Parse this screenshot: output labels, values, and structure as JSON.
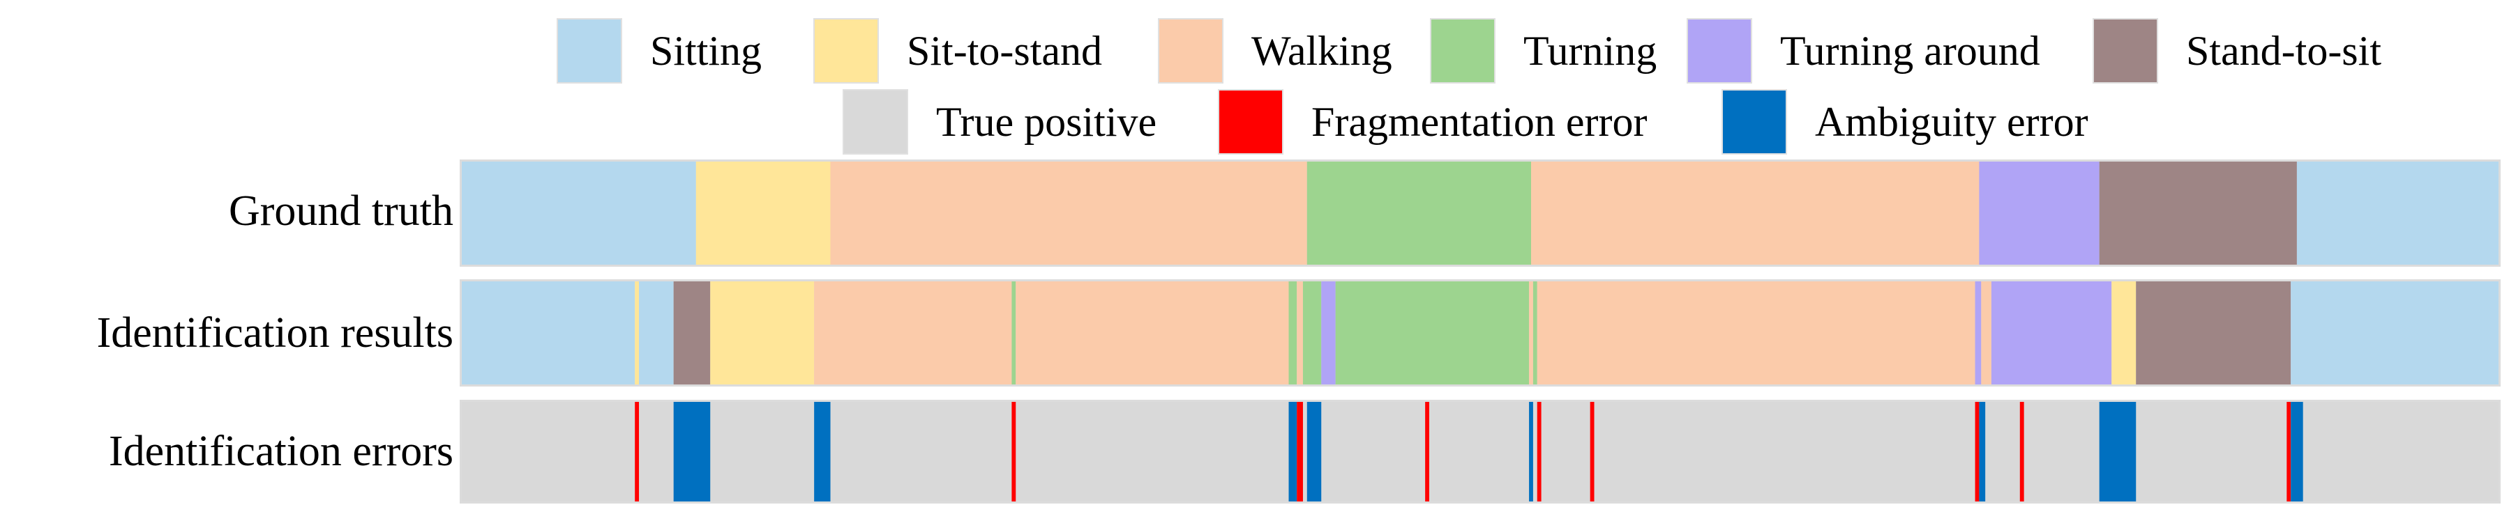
{
  "chart_data": {
    "type": "bar",
    "orientation": "horizontal-timeline",
    "title": "",
    "xlabel": "",
    "ylabel": "",
    "xlim": [
      0,
      100
    ],
    "legend": {
      "placement": "top",
      "activities": [
        {
          "name": "Sitting",
          "color": "#b4d8ee"
        },
        {
          "name": "Sit-to-stand",
          "color": "#ffe699"
        },
        {
          "name": "Walking",
          "color": "#fbcbaa"
        },
        {
          "name": "Turning",
          "color": "#9dd48f"
        },
        {
          "name": "Turning around",
          "color": "#b0a4f6"
        },
        {
          "name": "Stand-to-sit",
          "color": "#9e8585"
        }
      ],
      "errors": [
        {
          "name": "True positive",
          "color": "#d9d9d9"
        },
        {
          "name": "Fragmentation error",
          "color": "#ff0000"
        },
        {
          "name": "Ambiguity error",
          "color": "#0070c0"
        }
      ]
    },
    "rows": [
      {
        "name": "Ground truth",
        "segments": [
          {
            "label": "Sitting",
            "start": 0.0,
            "end": 11.5
          },
          {
            "label": "Sit-to-stand",
            "start": 11.5,
            "end": 18.1
          },
          {
            "label": "Walking",
            "start": 18.1,
            "end": 41.5
          },
          {
            "label": "Turning",
            "start": 41.5,
            "end": 52.5
          },
          {
            "label": "Walking",
            "start": 52.5,
            "end": 74.5
          },
          {
            "label": "Turning around",
            "start": 74.5,
            "end": 80.4
          },
          {
            "label": "Stand-to-sit",
            "start": 80.4,
            "end": 90.1
          },
          {
            "label": "Sitting",
            "start": 90.1,
            "end": 100.0
          }
        ]
      },
      {
        "name": "Identification results",
        "segments": [
          {
            "label": "Sitting",
            "start": 0.0,
            "end": 8.5
          },
          {
            "label": "Sit-to-stand",
            "start": 8.5,
            "end": 8.7
          },
          {
            "label": "Sitting",
            "start": 8.7,
            "end": 10.4
          },
          {
            "label": "Stand-to-sit",
            "start": 10.4,
            "end": 12.2
          },
          {
            "label": "Sit-to-stand",
            "start": 12.2,
            "end": 17.3
          },
          {
            "label": "Walking",
            "start": 17.3,
            "end": 27.0
          },
          {
            "label": "Turning",
            "start": 27.0,
            "end": 27.2
          },
          {
            "label": "Walking",
            "start": 27.2,
            "end": 40.6
          },
          {
            "label": "Turning",
            "start": 40.6,
            "end": 41.0
          },
          {
            "label": "Walking",
            "start": 41.0,
            "end": 41.3
          },
          {
            "label": "Turning",
            "start": 41.3,
            "end": 42.2
          },
          {
            "label": "Turning around",
            "start": 42.2,
            "end": 42.9
          },
          {
            "label": "Turning",
            "start": 42.9,
            "end": 52.4
          },
          {
            "label": "Walking",
            "start": 52.4,
            "end": 52.6
          },
          {
            "label": "Turning",
            "start": 52.6,
            "end": 52.8
          },
          {
            "label": "Walking",
            "start": 52.8,
            "end": 74.3
          },
          {
            "label": "Turning around",
            "start": 74.3,
            "end": 74.6
          },
          {
            "label": "Walking",
            "start": 74.6,
            "end": 75.1
          },
          {
            "label": "Turning around",
            "start": 75.1,
            "end": 81.0
          },
          {
            "label": "Sit-to-stand",
            "start": 81.0,
            "end": 82.2
          },
          {
            "label": "Stand-to-sit",
            "start": 82.2,
            "end": 89.8
          },
          {
            "label": "Sitting",
            "start": 89.8,
            "end": 100.0
          }
        ]
      },
      {
        "name": "Identification errors",
        "background": "True positive",
        "marks": [
          {
            "label": "Fragmentation error",
            "start": 8.5,
            "end": 8.7
          },
          {
            "label": "Ambiguity error",
            "start": 10.4,
            "end": 12.2
          },
          {
            "label": "Ambiguity error",
            "start": 17.3,
            "end": 18.1
          },
          {
            "label": "Fragmentation error",
            "start": 27.0,
            "end": 27.2
          },
          {
            "label": "Ambiguity error",
            "start": 40.6,
            "end": 41.0
          },
          {
            "label": "Fragmentation error",
            "start": 41.0,
            "end": 41.3
          },
          {
            "label": "Ambiguity error",
            "start": 41.5,
            "end": 42.2
          },
          {
            "label": "Fragmentation error",
            "start": 47.3,
            "end": 47.5
          },
          {
            "label": "Ambiguity error",
            "start": 52.4,
            "end": 52.6
          },
          {
            "label": "Fragmentation error",
            "start": 52.8,
            "end": 53.0
          },
          {
            "label": "Fragmentation error",
            "start": 55.4,
            "end": 55.6
          },
          {
            "label": "Fragmentation error",
            "start": 74.3,
            "end": 74.5
          },
          {
            "label": "Ambiguity error",
            "start": 74.5,
            "end": 74.8
          },
          {
            "label": "Fragmentation error",
            "start": 76.5,
            "end": 76.7
          },
          {
            "label": "Ambiguity error",
            "start": 80.4,
            "end": 82.2
          },
          {
            "label": "Fragmentation error",
            "start": 89.6,
            "end": 89.8
          },
          {
            "label": "Ambiguity error",
            "start": 89.8,
            "end": 90.4
          }
        ]
      }
    ]
  }
}
